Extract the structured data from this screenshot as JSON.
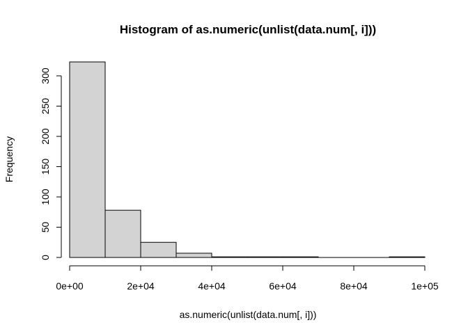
{
  "chart_data": {
    "type": "bar",
    "title": "Histogram of as.numeric(unlist(data.num[, i]))",
    "xlabel": "as.numeric(unlist(data.num[, i]))",
    "ylabel": "Frequency",
    "bins": [
      {
        "start": 0,
        "end": 10000,
        "count": 323
      },
      {
        "start": 10000,
        "end": 20000,
        "count": 78
      },
      {
        "start": 20000,
        "end": 30000,
        "count": 25
      },
      {
        "start": 30000,
        "end": 40000,
        "count": 7
      },
      {
        "start": 40000,
        "end": 50000,
        "count": 1
      },
      {
        "start": 50000,
        "end": 60000,
        "count": 1
      },
      {
        "start": 60000,
        "end": 70000,
        "count": 1
      },
      {
        "start": 70000,
        "end": 80000,
        "count": 0
      },
      {
        "start": 80000,
        "end": 90000,
        "count": 0
      },
      {
        "start": 90000,
        "end": 100000,
        "count": 1
      }
    ],
    "xlim": [
      0,
      100000
    ],
    "ylim": [
      0,
      323
    ],
    "x_ticks": [
      {
        "value": 0,
        "label": "0e+00"
      },
      {
        "value": 20000,
        "label": "2e+04"
      },
      {
        "value": 40000,
        "label": "4e+04"
      },
      {
        "value": 60000,
        "label": "6e+04"
      },
      {
        "value": 80000,
        "label": "8e+04"
      },
      {
        "value": 100000,
        "label": "1e+05"
      }
    ],
    "y_ticks": [
      {
        "value": 0,
        "label": "0"
      },
      {
        "value": 50,
        "label": "50"
      },
      {
        "value": 100,
        "label": "100"
      },
      {
        "value": 150,
        "label": "150"
      },
      {
        "value": 200,
        "label": "200"
      },
      {
        "value": 250,
        "label": "250"
      },
      {
        "value": 300,
        "label": "300"
      }
    ],
    "bar_fill": "#d3d3d3",
    "bar_stroke": "#000000",
    "grid": false
  }
}
